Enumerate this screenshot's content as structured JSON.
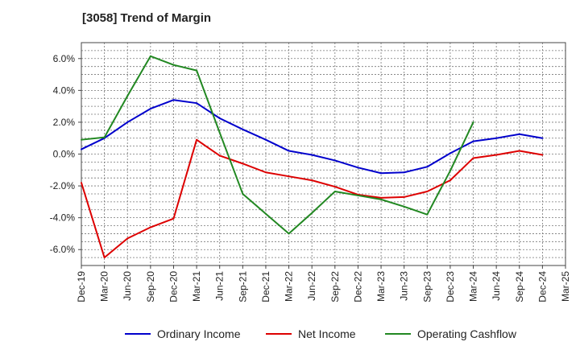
{
  "chart_data": {
    "type": "line",
    "title": "[3058]  Trend of Margin",
    "categories": [
      "Dec-19",
      "Mar-20",
      "Jun-20",
      "Sep-20",
      "Dec-20",
      "Mar-21",
      "Jun-21",
      "Sep-21",
      "Dec-21",
      "Mar-22",
      "Jun-22",
      "Sep-22",
      "Dec-22",
      "Mar-23",
      "Jun-23",
      "Sep-23",
      "Dec-23",
      "Mar-24",
      "Jun-24",
      "Sep-24",
      "Dec-24",
      "Mar-25"
    ],
    "ylim": [
      -7.0,
      7.0
    ],
    "yticks": [
      6.0,
      4.0,
      2.0,
      0.0,
      -2.0,
      -4.0,
      -6.0
    ],
    "ytick_labels": [
      "6.0%",
      "4.0%",
      "2.0%",
      "0.0%",
      "-2.0%",
      "-4.0%",
      "-6.0%"
    ],
    "grid": true,
    "legend_position": "bottom",
    "series": [
      {
        "name": "Ordinary Income",
        "color": "#0000cc",
        "values": [
          0.3,
          1.0,
          2.0,
          2.85,
          3.4,
          3.2,
          2.25,
          1.55,
          0.9,
          0.2,
          -0.05,
          -0.4,
          -0.85,
          -1.2,
          -1.15,
          -0.8,
          0.05,
          0.8,
          1.0,
          1.25,
          1.0,
          null
        ]
      },
      {
        "name": "Net Income",
        "color": "#dd0000",
        "values": [
          -1.8,
          -6.5,
          -5.3,
          -4.6,
          -4.05,
          0.9,
          -0.1,
          -0.6,
          -1.15,
          -1.4,
          -1.65,
          -2.05,
          -2.55,
          -2.75,
          -2.7,
          -2.35,
          -1.65,
          -0.25,
          -0.05,
          0.2,
          -0.05,
          null
        ]
      },
      {
        "name": "Operating Cashflow",
        "color": "#228822",
        "values": [
          0.9,
          1.05,
          3.65,
          6.15,
          5.6,
          5.25,
          1.35,
          -2.5,
          -3.75,
          -5.0,
          -3.7,
          -2.35,
          -2.6,
          -2.85,
          -3.3,
          -3.8,
          -1.05,
          2.0,
          null,
          null,
          null,
          null
        ]
      }
    ]
  }
}
